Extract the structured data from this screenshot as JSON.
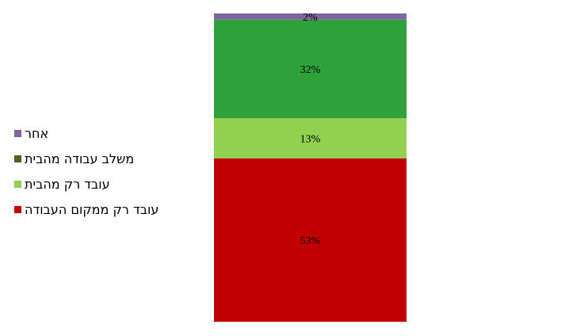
{
  "chart_data": {
    "type": "bar",
    "stacked": true,
    "percent": true,
    "categories": [
      ""
    ],
    "series": [
      {
        "name": "עובד רק ממקום העבודה",
        "values": [
          53
        ],
        "label": "53%",
        "color": "#C00000"
      },
      {
        "name": "עובד רק מהבית",
        "values": [
          13
        ],
        "label": "13%",
        "color": "#92D050"
      },
      {
        "name": "משלב עבודה מהבית",
        "values": [
          32
        ],
        "label": "32%",
        "color": "#2EA13A"
      },
      {
        "name": "אחר",
        "values": [
          2
        ],
        "label": "2%",
        "color": "#8064A2"
      }
    ],
    "legend_order": [
      3,
      2,
      1,
      0
    ],
    "legend_colors": [
      "#8064A2",
      "#4F6228",
      "#92D050",
      "#C00000"
    ],
    "ylim": [
      0,
      100
    ],
    "legend_position": "left",
    "grid": false,
    "title": "",
    "xlabel": "",
    "ylabel": ""
  }
}
